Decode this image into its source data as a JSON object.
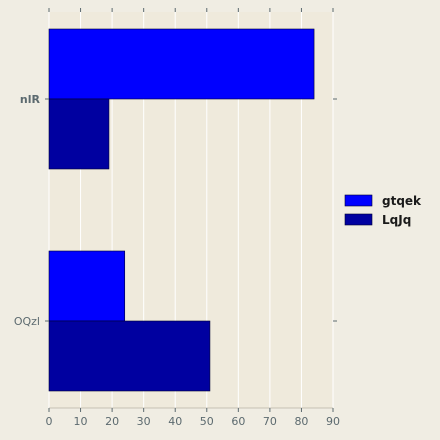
{
  "chart_data": {
    "type": "bar",
    "orientation": "horizontal",
    "categories": [
      "nlR",
      "OQzl"
    ],
    "category_label_styles": [
      "bold",
      "normal"
    ],
    "series": [
      {
        "name": "gtqek",
        "values": [
          84,
          24
        ],
        "color": "#0000ff"
      },
      {
        "name": "LqJq",
        "values": [
          19,
          51
        ],
        "color": "#0000a0"
      }
    ],
    "xlim": [
      0,
      90
    ],
    "xticks": [
      0,
      10,
      20,
      30,
      40,
      50,
      60,
      70,
      80,
      90
    ],
    "title": "",
    "xlabel": "",
    "ylabel": "",
    "grid": true,
    "legend_position": "right",
    "background_color": "#efeadc",
    "grid_color": "#ffffff"
  }
}
